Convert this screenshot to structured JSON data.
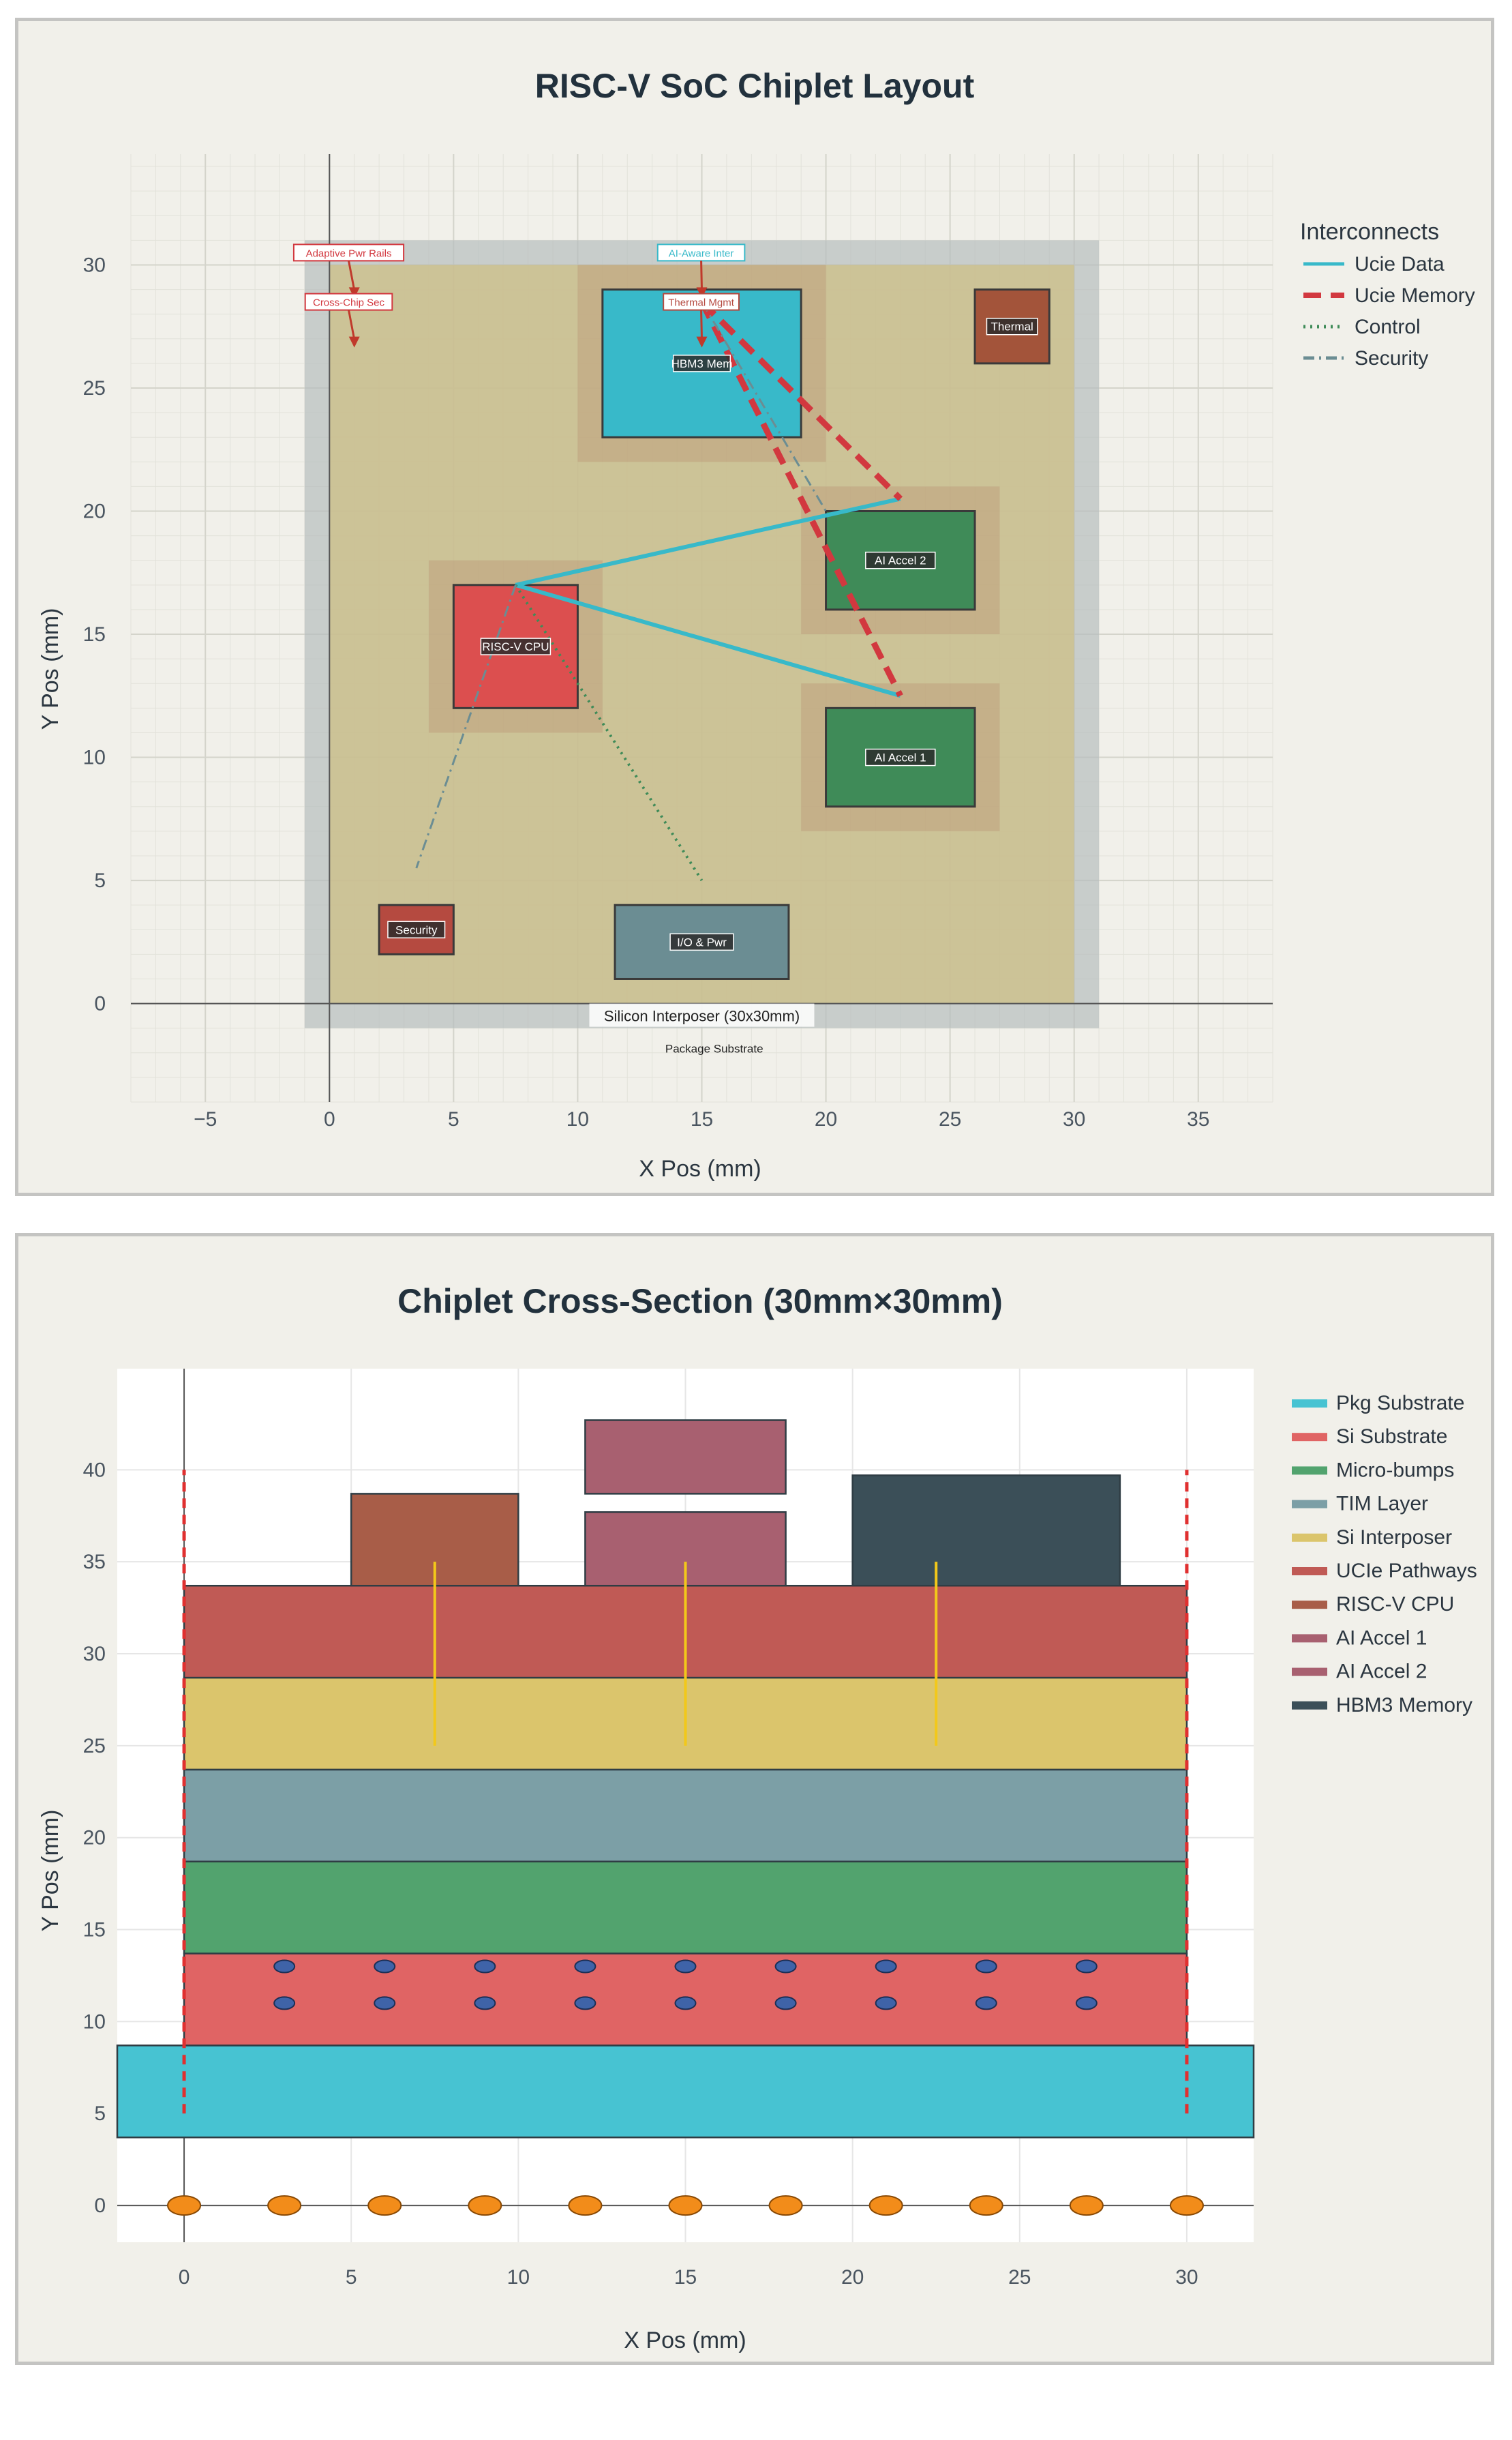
{
  "chart_data": [
    {
      "type": "layout",
      "title": "RISC-V SoC Chiplet Layout",
      "xlabel": "X Pos (mm)",
      "ylabel": "Y Pos (mm)",
      "xlim": [
        -8,
        38
      ],
      "ylim": [
        -4,
        34.5
      ],
      "xticks": [
        -5,
        0,
        5,
        10,
        15,
        20,
        25,
        30,
        35
      ],
      "yticks": [
        0,
        5,
        10,
        15,
        20,
        25,
        30
      ],
      "package": {
        "x": -1,
        "y": -1,
        "w": 32,
        "h": 32,
        "label": "Package Substrate",
        "label_x": 15.5,
        "label_y": -1.5
      },
      "interposer": {
        "x": 0,
        "y": 0,
        "w": 30,
        "h": 30,
        "label": "Silicon Interposer (30x30mm)",
        "label_x": 15,
        "label_y": -0.5
      },
      "chiplets": [
        {
          "name": "HBM3 Mem",
          "x": 11,
          "y": 23,
          "w": 8,
          "h": 6,
          "color": "#38b9c9",
          "halo": 1,
          "label_y": 26
        },
        {
          "name": "RISC-V CPU",
          "x": 5,
          "y": 12,
          "w": 5,
          "h": 5,
          "color": "#dc4f4f",
          "halo": 1,
          "label_y": 14.5
        },
        {
          "name": "AI Accel 2",
          "x": 20,
          "y": 16,
          "w": 6,
          "h": 4,
          "color": "#3f8b58",
          "halo": 1,
          "label_y": 18
        },
        {
          "name": "AI Accel 1",
          "x": 20,
          "y": 8,
          "w": 6,
          "h": 4,
          "color": "#3f8b58",
          "halo": 1,
          "label_y": 10
        },
        {
          "name": "Thermal",
          "x": 26,
          "y": 26,
          "w": 3,
          "h": 3,
          "color": "#a3543a",
          "halo": 0,
          "label_y": 27.5
        },
        {
          "name": "Security",
          "x": 2,
          "y": 2,
          "w": 3,
          "h": 2,
          "color": "#b54a40",
          "halo": 0,
          "label_y": 3
        },
        {
          "name": "I/O & Pwr",
          "x": 11.5,
          "y": 1,
          "w": 7,
          "h": 3,
          "color": "#6b8d93",
          "halo": 0,
          "label_y": 2.5
        }
      ],
      "interconnects": [
        {
          "type": "Ucie Data",
          "points": [
            [
              7.5,
              17
            ],
            [
              23,
              20.5
            ]
          ]
        },
        {
          "type": "Ucie Data",
          "points": [
            [
              7.5,
              17
            ],
            [
              23,
              12.5
            ]
          ]
        },
        {
          "type": "Ucie Memory",
          "points": [
            [
              15,
              28.5
            ],
            [
              23,
              20.5
            ]
          ]
        },
        {
          "type": "Ucie Memory",
          "points": [
            [
              15,
              28.5
            ],
            [
              23,
              12.5
            ]
          ]
        },
        {
          "type": "Control",
          "points": [
            [
              7.5,
              17
            ],
            [
              15,
              5
            ]
          ]
        },
        {
          "type": "Security",
          "points": [
            [
              7.5,
              17
            ],
            [
              3.5,
              5.5
            ]
          ]
        },
        {
          "type": "Security",
          "points": [
            [
              15,
              28.5
            ],
            [
              20,
              20
            ]
          ]
        }
      ],
      "annotations": [
        {
          "text": "Adaptive Pwr Rails",
          "x": 0.5,
          "y": 30.5,
          "color": "#d2383f",
          "arrow_to": [
            1,
            28.7
          ]
        },
        {
          "text": "Cross-Chip Sec",
          "x": 0.5,
          "y": 28.5,
          "color": "#d2383f",
          "arrow_to": [
            1,
            26.7
          ]
        },
        {
          "text": "AI-Aware Inter",
          "x": 14.7,
          "y": 30.5,
          "color": "#38b9c9",
          "arrow_to": [
            15,
            28.7
          ]
        },
        {
          "text": "Thermal Mgmt",
          "x": 14.7,
          "y": 28.5,
          "color": "#b54a40",
          "arrow_to": [
            15,
            26.7
          ]
        }
      ],
      "legend": {
        "title": "Interconnects",
        "entries": [
          {
            "label": "Ucie Data",
            "style": "solid",
            "color": "#38b9c9"
          },
          {
            "label": "Ucie Memory",
            "style": "dashed",
            "color": "#d2383f"
          },
          {
            "label": "Control",
            "style": "dotted",
            "color": "#3f8b58"
          },
          {
            "label": "Security",
            "style": "dashdot",
            "color": "#6b8d93"
          }
        ]
      }
    },
    {
      "type": "cross-section",
      "title": "Chiplet Cross-Section (30mm×30mm)",
      "xlabel": "X Pos (mm)",
      "ylabel": "Y Pos (mm)",
      "xlim": [
        -2,
        32
      ],
      "ylim": [
        -2,
        45.5
      ],
      "xticks": [
        0,
        5,
        10,
        15,
        20,
        25,
        30
      ],
      "yticks": [
        0,
        5,
        10,
        15,
        20,
        25,
        30,
        35,
        40
      ],
      "layers": [
        {
          "name": "Pkg Substrate",
          "x0": -2,
          "x1": 32,
          "y0": 3.7,
          "y1": 8.7,
          "color": "#47c3d2"
        },
        {
          "name": "Si Substrate",
          "x0": 0,
          "x1": 30,
          "y0": 8.7,
          "y1": 13.7,
          "color": "#e06464"
        },
        {
          "name": "Micro-bumps",
          "x0": 0,
          "x1": 30,
          "y0": 13.7,
          "y1": 18.7,
          "color": "#52a36e"
        },
        {
          "name": "TIM Layer",
          "x0": 0,
          "x1": 30,
          "y0": 18.7,
          "y1": 23.7,
          "color": "#7c9fa6"
        },
        {
          "name": "Si Interposer",
          "x0": 0,
          "x1": 30,
          "y0": 23.7,
          "y1": 28.7,
          "color": "#dbc56c"
        },
        {
          "name": "UCIe Pathways",
          "x0": 0,
          "x1": 30,
          "y0": 28.7,
          "y1": 33.7,
          "color": "#c05a55"
        }
      ],
      "dies": [
        {
          "name": "RISC-V CPU",
          "x0": 5,
          "x1": 10,
          "y0": 33.7,
          "y1": 38.7,
          "color": "#a85d48"
        },
        {
          "name": "AI Accel 1",
          "x0": 12,
          "x1": 18,
          "y0": 33.7,
          "y1": 37.7,
          "color": "#a86070"
        },
        {
          "name": "AI Accel 2",
          "x0": 12,
          "x1": 18,
          "y0": 38.7,
          "y1": 42.7,
          "color": "#a86070"
        },
        {
          "name": "HBM3 Memory",
          "x0": 20,
          "x1": 28,
          "y0": 33.7,
          "y1": 39.7,
          "color": "#3b4f58"
        }
      ],
      "vias_x": [
        7.5,
        15,
        22.5
      ],
      "vias_y": [
        25,
        35
      ],
      "tsv_x": [
        3,
        6,
        9,
        12,
        15,
        18,
        21,
        24,
        27
      ],
      "tsv_y": [
        11,
        13
      ],
      "bumps_x": [
        0,
        3,
        6,
        9,
        12,
        15,
        18,
        21,
        24,
        27,
        30
      ],
      "bumps_y": 0,
      "boundary_x": [
        0,
        30
      ],
      "boundary_y": [
        5,
        40
      ],
      "legend": [
        {
          "label": "Pkg Substrate",
          "color": "#47c3d2"
        },
        {
          "label": "Si Substrate",
          "color": "#e06464"
        },
        {
          "label": "Micro-bumps",
          "color": "#52a36e"
        },
        {
          "label": "TIM Layer",
          "color": "#7c9fa6"
        },
        {
          "label": "Si Interposer",
          "color": "#dbc56c"
        },
        {
          "label": "UCIe Pathways",
          "color": "#c05a55"
        },
        {
          "label": "RISC-V CPU",
          "color": "#a85d48"
        },
        {
          "label": "AI Accel 1",
          "color": "#a86070"
        },
        {
          "label": "AI Accel 2",
          "color": "#a86070"
        },
        {
          "label": "HBM3 Memory",
          "color": "#3b4f58"
        }
      ]
    }
  ]
}
